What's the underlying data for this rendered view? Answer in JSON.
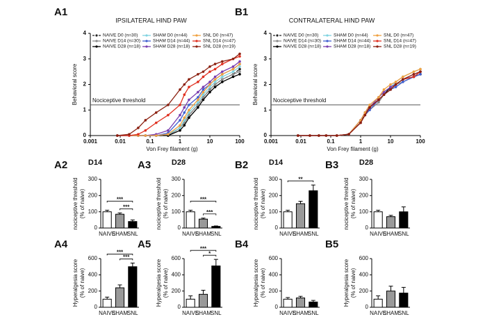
{
  "chart_data": [
    {
      "type": "line",
      "panel": "A1",
      "title": "IPSILATERAL HIND PAW",
      "xlabel": "Von Frey filament (g)",
      "ylabel": [
        "Behavioral score"
      ],
      "log_x": true,
      "xlim": [
        0.001,
        100
      ],
      "xticks": [
        0.001,
        0.01,
        0.1,
        1,
        10,
        100
      ],
      "ylim": [
        0,
        4
      ],
      "yticks": [
        0,
        1,
        2,
        3,
        4
      ],
      "threshold": {
        "text": "Nociceptive threshold",
        "value": 1.2
      },
      "x": [
        0.008,
        0.02,
        0.04,
        0.07,
        0.16,
        0.4,
        1,
        1.4,
        2,
        4,
        6,
        10,
        15,
        26,
        60,
        100
      ],
      "series": [
        {
          "name": "NAIVE D0 (n=30)",
          "color": "#222222",
          "dashed": true,
          "values": [
            0,
            0,
            0,
            0,
            0,
            0,
            0.3,
            0.5,
            0.8,
            1.2,
            1.5,
            1.8,
            2.0,
            2.2,
            2.4,
            2.6
          ]
        },
        {
          "name": "NAIVE D14 (n=30)",
          "color": "#8a8a8a",
          "values": [
            0,
            0,
            0,
            0,
            0,
            0,
            0.3,
            0.5,
            0.8,
            1.2,
            1.5,
            1.8,
            2.0,
            2.2,
            2.4,
            2.5
          ]
        },
        {
          "name": "NAIVE D28 (n=18)",
          "color": "#000000",
          "values": [
            0,
            0,
            0,
            0,
            0,
            0,
            0.2,
            0.4,
            0.7,
            1.1,
            1.4,
            1.7,
            1.9,
            2.1,
            2.3,
            2.4
          ]
        },
        {
          "name": "SHAM D0 (n=44)",
          "color": "#7fd3e0",
          "values": [
            0,
            0,
            0,
            0,
            0,
            0.05,
            0.3,
            0.6,
            0.9,
            1.3,
            1.6,
            1.9,
            2.1,
            2.3,
            2.5,
            2.7
          ]
        },
        {
          "name": "SHAM D14 (n=44)",
          "color": "#3f5fd0",
          "values": [
            0,
            0,
            0,
            0,
            0,
            0.1,
            0.6,
            0.9,
            1.2,
            1.5,
            1.8,
            2.0,
            2.2,
            2.4,
            2.6,
            2.8
          ]
        },
        {
          "name": "SHAM D28 (n=18)",
          "color": "#7a3fb0",
          "values": [
            0,
            0,
            0,
            0,
            0.05,
            0.2,
            0.8,
            1.1,
            1.4,
            1.7,
            1.9,
            2.1,
            2.3,
            2.5,
            2.7,
            2.9
          ]
        },
        {
          "name": "SNL D0 (n=47)",
          "color": "#f0a040",
          "values": [
            0,
            0,
            0,
            0,
            0,
            0.05,
            0.4,
            0.7,
            1.0,
            1.4,
            1.7,
            2.0,
            2.2,
            2.4,
            2.6,
            2.8
          ]
        },
        {
          "name": "SNL D14 (n=47)",
          "color": "#e03020",
          "values": [
            0,
            0,
            0.05,
            0.2,
            0.5,
            0.8,
            1.2,
            1.6,
            1.9,
            2.1,
            2.3,
            2.5,
            2.6,
            2.8,
            3.0,
            3.1
          ]
        },
        {
          "name": "SNL D28 (n=19)",
          "color": "#8b2010",
          "values": [
            0,
            0.05,
            0.3,
            0.6,
            0.9,
            1.2,
            1.8,
            2.0,
            2.2,
            2.4,
            2.5,
            2.7,
            2.8,
            2.9,
            3.0,
            3.2
          ]
        }
      ]
    },
    {
      "type": "line",
      "panel": "B1",
      "title": "CONTRALATERAL HIND PAW",
      "xlabel": "Von Frey filament (g)",
      "ylabel": [
        "Behavioral score"
      ],
      "log_x": true,
      "xlim": [
        0.001,
        100
      ],
      "xticks": [
        0.001,
        0.01,
        0.1,
        1,
        10,
        100
      ],
      "ylim": [
        0,
        4
      ],
      "yticks": [
        0,
        1,
        2,
        3,
        4
      ],
      "threshold": {
        "text": "Nociceptive threshold",
        "value": 1.2
      },
      "x": [
        0.008,
        0.02,
        0.04,
        0.07,
        0.16,
        0.4,
        1,
        1.4,
        2,
        4,
        6,
        10,
        15,
        26,
        60,
        100
      ],
      "series": [
        {
          "name": "NAIVE D0 (n=30)",
          "color": "#222222",
          "dashed": true,
          "values": [
            0,
            0,
            0,
            0,
            0,
            0.05,
            0.6,
            0.8,
            1.1,
            1.4,
            1.6,
            1.8,
            2.0,
            2.2,
            2.3,
            2.5
          ]
        },
        {
          "name": "NAIVE D14 (n=30)",
          "color": "#8a8a8a",
          "values": [
            0,
            0,
            0,
            0,
            0,
            0.05,
            0.5,
            0.8,
            1.0,
            1.3,
            1.6,
            1.8,
            2.0,
            2.1,
            2.3,
            2.4
          ]
        },
        {
          "name": "NAIVE D28 (n=18)",
          "color": "#000000",
          "values": [
            0,
            0,
            0,
            0,
            0,
            0.05,
            0.6,
            0.9,
            1.1,
            1.4,
            1.6,
            1.9,
            2.0,
            2.2,
            2.3,
            2.4
          ]
        },
        {
          "name": "SHAM D0 (n=44)",
          "color": "#7fd3e0",
          "values": [
            0,
            0,
            0,
            0,
            0,
            0.05,
            0.6,
            0.9,
            1.2,
            1.5,
            1.7,
            1.9,
            2.1,
            2.3,
            2.5,
            2.6
          ]
        },
        {
          "name": "SHAM D14 (n=44)",
          "color": "#3f5fd0",
          "values": [
            0,
            0,
            0,
            0,
            0,
            0.05,
            0.5,
            0.8,
            1.0,
            1.4,
            1.6,
            1.8,
            1.9,
            2.1,
            2.3,
            2.4
          ]
        },
        {
          "name": "SHAM D28 (n=18)",
          "color": "#7a3fb0",
          "values": [
            0,
            0,
            0,
            0,
            0,
            0.05,
            0.6,
            0.9,
            1.1,
            1.5,
            1.7,
            1.9,
            2.0,
            2.2,
            2.4,
            2.5
          ]
        },
        {
          "name": "SNL D0 (n=47)",
          "color": "#f0a040",
          "values": [
            0,
            0,
            0,
            0,
            0,
            0.05,
            0.6,
            0.9,
            1.2,
            1.5,
            1.8,
            2.0,
            2.1,
            2.3,
            2.5,
            2.6
          ]
        },
        {
          "name": "SNL D14 (n=47)",
          "color": "#e03020",
          "values": [
            0,
            0,
            0,
            0,
            0,
            0.05,
            0.5,
            0.8,
            1.1,
            1.4,
            1.6,
            1.8,
            2.0,
            2.2,
            2.3,
            2.5
          ]
        },
        {
          "name": "SNL D28 (n=19)",
          "color": "#8b2010",
          "values": [
            0,
            0,
            0,
            0,
            0,
            0.05,
            0.5,
            0.8,
            1.1,
            1.4,
            1.6,
            1.8,
            2.0,
            2.2,
            2.4,
            2.5
          ]
        }
      ]
    },
    {
      "type": "bar",
      "panel": "A2",
      "title": "D14",
      "ylabel": [
        "nociceptive threshold",
        "(% of naive)"
      ],
      "ylim": [
        0,
        300
      ],
      "yticks": [
        0,
        100,
        200,
        300
      ],
      "categories": [
        "NAIVE",
        "SHAM",
        "SNL"
      ],
      "colors": [
        "#ffffff",
        "#999999",
        "#000000"
      ],
      "values": [
        100,
        85,
        40
      ],
      "errors": [
        10,
        8,
        10
      ],
      "annotations": [
        {
          "text": "***",
          "from": 0,
          "to": 2
        },
        {
          "text": "***",
          "from": 1,
          "to": 2
        }
      ]
    },
    {
      "type": "bar",
      "panel": "A3",
      "title": "D28",
      "ylabel": [
        "nociceptive threshold",
        "(% of naive)"
      ],
      "ylim": [
        0,
        300
      ],
      "yticks": [
        0,
        100,
        200,
        300
      ],
      "categories": [
        "NAIVE",
        "SHAM",
        "SNL"
      ],
      "colors": [
        "#ffffff",
        "#999999",
        "#000000"
      ],
      "values": [
        100,
        55,
        10
      ],
      "errors": [
        10,
        6,
        3
      ],
      "annotations": [
        {
          "text": "***",
          "from": 0,
          "to": 2
        },
        {
          "text": "***",
          "from": 1,
          "to": 2
        }
      ]
    },
    {
      "type": "bar",
      "panel": "B2",
      "title": "D14",
      "ylabel": [
        "nociceptive threshold",
        "(% of naive)"
      ],
      "ylim": [
        0,
        300
      ],
      "yticks": [
        0,
        100,
        200,
        300
      ],
      "categories": [
        "NAIVE",
        "SHAM",
        "SNL"
      ],
      "colors": [
        "#ffffff",
        "#999999",
        "#000000"
      ],
      "values": [
        100,
        150,
        230
      ],
      "errors": [
        10,
        15,
        35
      ],
      "annotations": [
        {
          "text": "**",
          "from": 0,
          "to": 2
        }
      ]
    },
    {
      "type": "bar",
      "panel": "B3",
      "title": "D28",
      "ylabel": [
        "nociceptive threshold",
        "(% of naive)"
      ],
      "ylim": [
        0,
        300
      ],
      "yticks": [
        0,
        100,
        200,
        300
      ],
      "categories": [
        "NAIVE",
        "SHAM",
        "SNL"
      ],
      "colors": [
        "#ffffff",
        "#999999",
        "#000000"
      ],
      "values": [
        100,
        70,
        100
      ],
      "errors": [
        10,
        8,
        30
      ]
    },
    {
      "type": "bar",
      "panel": "A4",
      "ylabel": [
        "Hyperalgesia score",
        "(% of naive)"
      ],
      "ylim": [
        0,
        600
      ],
      "yticks": [
        0,
        200,
        400,
        600
      ],
      "categories": [
        "NAIVE",
        "SHAM",
        "SNL"
      ],
      "colors": [
        "#ffffff",
        "#999999",
        "#000000"
      ],
      "values": [
        100,
        240,
        500
      ],
      "errors": [
        25,
        35,
        45
      ],
      "annotations": [
        {
          "text": "***",
          "from": 0,
          "to": 2
        },
        {
          "text": "***",
          "from": 1,
          "to": 2
        }
      ]
    },
    {
      "type": "bar",
      "panel": "A5",
      "ylabel": [
        "Hyperalgesia score",
        "(% of naive)"
      ],
      "ylim": [
        0,
        600
      ],
      "yticks": [
        0,
        200,
        400,
        600
      ],
      "categories": [
        "NAIVE",
        "SHAM",
        "SNL"
      ],
      "colors": [
        "#ffffff",
        "#999999",
        "#000000"
      ],
      "values": [
        100,
        160,
        510
      ],
      "errors": [
        40,
        50,
        80
      ],
      "annotations": [
        {
          "text": "***",
          "from": 0,
          "to": 2
        },
        {
          "text": "*",
          "from": 1,
          "to": 2
        }
      ]
    },
    {
      "type": "bar",
      "panel": "B4",
      "ylabel": [
        "Hyperalgesia score",
        "(% of naive)"
      ],
      "ylim": [
        0,
        600
      ],
      "yticks": [
        0,
        200,
        400,
        600
      ],
      "categories": [
        "NAIVE",
        "SHAM",
        "SNL"
      ],
      "colors": [
        "#ffffff",
        "#999999",
        "#000000"
      ],
      "values": [
        100,
        115,
        65
      ],
      "errors": [
        20,
        20,
        20
      ]
    },
    {
      "type": "bar",
      "panel": "B5",
      "ylabel": [
        "Hyperalgesia score",
        "(% of naive)"
      ],
      "ylim": [
        0,
        600
      ],
      "yticks": [
        0,
        200,
        400,
        600
      ],
      "categories": [
        "NAIVE",
        "SHAM",
        "SNL"
      ],
      "colors": [
        "#ffffff",
        "#999999",
        "#000000"
      ],
      "values": [
        100,
        200,
        175
      ],
      "errors": [
        40,
        60,
        70
      ]
    }
  ]
}
